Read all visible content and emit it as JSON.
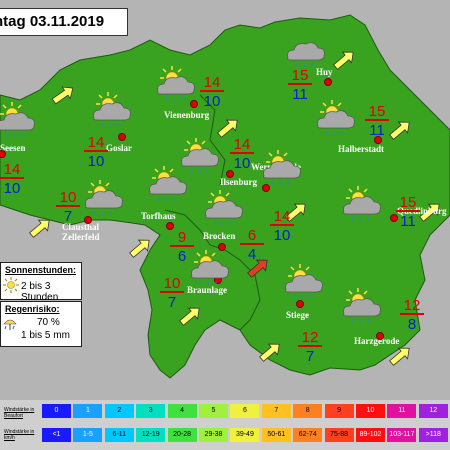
{
  "title": "ntag 03.11.2019",
  "colors": {
    "land": "#39a320",
    "outside": "#b4b4b4",
    "temp_max": "#e00000",
    "temp_min": "#0022cc",
    "arrow": "#ffff66",
    "arrow_strong": "#e04020"
  },
  "places": [
    {
      "name": "Seesen",
      "max": "14",
      "min": "10",
      "icon": "sun-cloud-rain-icon"
    },
    {
      "name": "Goslar",
      "max": "14",
      "min": "10",
      "icon": "sun-cloud-rain-icon"
    },
    {
      "name": "Vienenburg",
      "max": "14",
      "min": "10",
      "icon": "sun-cloud-rain-icon"
    },
    {
      "name": "Huy",
      "max": "15",
      "min": "11",
      "icon": "cloud-rain-icon"
    },
    {
      "name": "Ilsenburg",
      "max": "14",
      "min": "10",
      "icon": "sun-cloud-rain-icon"
    },
    {
      "name": "Halberstadt",
      "max": "15",
      "min": "11",
      "icon": "sun-cloud-rain-icon"
    },
    {
      "name": "Wernigerode",
      "max": "14",
      "min": "10",
      "icon": "sun-cloud-rain-icon"
    },
    {
      "name": "Clausthal\nZellerfeld",
      "max": "10",
      "min": "7",
      "icon": "sun-cloud-rain-icon"
    },
    {
      "name": "Torfhaus",
      "max": "9",
      "min": "6",
      "icon": "sun-cloud-rain-icon"
    },
    {
      "name": "Brocken",
      "max": "6",
      "min": "4",
      "icon": "sun-cloud-rain-icon"
    },
    {
      "name": "Quedlinburg",
      "max": "15",
      "min": "11",
      "icon": "sun-cloud-rain-icon"
    },
    {
      "name": "Braunlage",
      "max": "10",
      "min": "7",
      "icon": "sun-cloud-rain-icon"
    },
    {
      "name": "Stiege",
      "max": "12",
      "min": "7",
      "icon": "sun-cloud-rain-icon"
    },
    {
      "name": "Harzgerode",
      "max": "12",
      "min": "8",
      "icon": "sun-cloud-rain-icon"
    },
    {
      "name": "",
      "max": "",
      "min": "",
      "icon": "sun-cloud-icon"
    }
  ],
  "sunshine_box": {
    "title": "Sonnenstunden:",
    "value": "2 bis 3 Stunden",
    "icon": "sun-icon"
  },
  "rain_box": {
    "title": "Regenrisiko:",
    "percent": "70 %",
    "amount": "1 bis 5 mm",
    "icon": "rain-umbrella-icon"
  },
  "legend": {
    "row1_label": "Windstärke in Beaufort",
    "row2_label": "Windstärke in km/h",
    "beaufort": [
      "0",
      "1",
      "2",
      "3",
      "4",
      "5",
      "6",
      "7",
      "8",
      "9",
      "10",
      "11",
      "12"
    ],
    "kmh": [
      "<1",
      "1-5",
      "6-11",
      "12-19",
      "20-28",
      "29-38",
      "39-49",
      "50-61",
      "62-74",
      "75-88",
      "89-102",
      "103-117",
      ">118"
    ],
    "colors": [
      "#1a1aff",
      "#1aa0ff",
      "#00c8ff",
      "#00e0c0",
      "#40e040",
      "#a0f040",
      "#f0f040",
      "#ffc020",
      "#ff8020",
      "#ff4020",
      "#ff1010",
      "#e010a0",
      "#a020e0"
    ]
  }
}
